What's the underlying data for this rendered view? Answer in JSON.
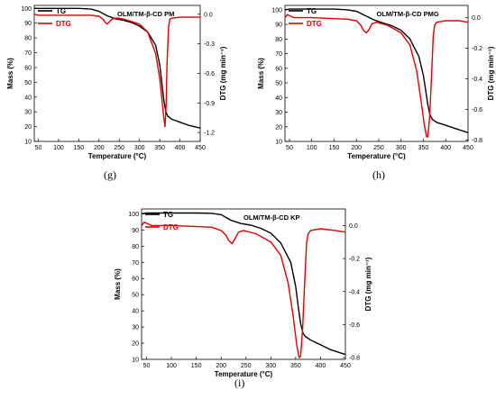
{
  "chart_data": [
    {
      "type": "line",
      "panel": "(g)",
      "title": "OLM/TM-β-CD PM",
      "xlabel": "Temperature (°C)",
      "ylabel": "Mass (%)",
      "y2label": "DTG (mg min⁻¹)",
      "xlim": [
        40,
        450
      ],
      "ylim": [
        10,
        102
      ],
      "y2lim": [
        -1.29,
        0.09
      ],
      "xticks": [
        50,
        100,
        150,
        200,
        250,
        300,
        350,
        400,
        450
      ],
      "yticks": [
        10,
        20,
        30,
        40,
        50,
        60,
        70,
        80,
        90,
        100
      ],
      "y2ticks": [
        0.0,
        -0.3,
        -0.6,
        -0.9,
        -1.2
      ],
      "legend_position": "top-left",
      "series": [
        {
          "name": "TG",
          "axis": "left",
          "color": "#000000",
          "x": [
            40,
            60,
            100,
            150,
            180,
            200,
            220,
            240,
            260,
            280,
            300,
            320,
            340,
            350,
            355,
            360,
            365,
            370,
            375,
            380,
            400,
            420,
            450
          ],
          "values": [
            100,
            100,
            100,
            100,
            99.5,
            98,
            95,
            93,
            92,
            90.5,
            88,
            84,
            75,
            62,
            50,
            38,
            30,
            27,
            26,
            25,
            23,
            21,
            19
          ]
        },
        {
          "name": "DTG",
          "axis": "right",
          "color": "#e00000",
          "x": [
            40,
            50,
            100,
            180,
            200,
            210,
            215,
            220,
            225,
            232,
            240,
            250,
            270,
            300,
            320,
            340,
            350,
            355,
            360,
            363,
            366,
            368,
            372,
            375,
            380,
            400,
            430,
            450
          ],
          "values": [
            0.0,
            -0.01,
            -0.01,
            -0.01,
            -0.02,
            -0.05,
            -0.08,
            -0.1,
            -0.08,
            -0.05,
            -0.04,
            -0.04,
            -0.06,
            -0.1,
            -0.18,
            -0.4,
            -0.65,
            -0.85,
            -1.05,
            -1.14,
            -0.9,
            -0.5,
            -0.12,
            -0.05,
            -0.04,
            -0.03,
            -0.03,
            -0.03
          ]
        }
      ]
    },
    {
      "type": "line",
      "panel": "(h)",
      "title": "OLM/TM-β-CD PMG",
      "xlabel": "Temperature (°C)",
      "ylabel": "Mass (%)",
      "y2label": "DTG (mg min⁻¹)",
      "xlim": [
        40,
        450
      ],
      "ylim": [
        10,
        103
      ],
      "y2lim": [
        -0.81,
        0.08
      ],
      "xticks": [
        50,
        100,
        150,
        200,
        250,
        300,
        350,
        400,
        450
      ],
      "yticks": [
        10,
        20,
        30,
        40,
        50,
        60,
        70,
        80,
        90,
        100
      ],
      "y2ticks": [
        0.0,
        -0.2,
        -0.4,
        -0.6,
        -0.8
      ],
      "legend_position": "top-left",
      "series": [
        {
          "name": "TG",
          "axis": "left",
          "color": "#000000",
          "x": [
            40,
            50,
            100,
            150,
            180,
            200,
            220,
            240,
            260,
            280,
            300,
            320,
            340,
            350,
            355,
            360,
            365,
            370,
            375,
            380,
            400,
            420,
            450
          ],
          "values": [
            100,
            100.5,
            100.5,
            100.5,
            100,
            99,
            96,
            93,
            91,
            89,
            86,
            80,
            68,
            55,
            45,
            35,
            28,
            25,
            24,
            23,
            21,
            19,
            16
          ]
        },
        {
          "name": "DTG",
          "axis": "right",
          "color": "#e00000",
          "x": [
            40,
            45,
            60,
            100,
            180,
            200,
            210,
            215,
            222,
            228,
            235,
            245,
            270,
            300,
            320,
            335,
            345,
            352,
            357,
            360,
            364,
            368,
            372,
            375,
            380,
            400,
            430,
            450
          ],
          "values": [
            0.0,
            0.02,
            0.0,
            0.0,
            -0.01,
            -0.02,
            -0.05,
            -0.08,
            -0.1,
            -0.08,
            -0.04,
            -0.03,
            -0.05,
            -0.1,
            -0.18,
            -0.35,
            -0.55,
            -0.7,
            -0.78,
            -0.78,
            -0.65,
            -0.4,
            -0.12,
            -0.05,
            -0.03,
            -0.02,
            -0.02,
            -0.03
          ]
        }
      ]
    },
    {
      "type": "line",
      "panel": "(i)",
      "title": "OLM/TM-β-CD KP",
      "xlabel": "Temperature (°C)",
      "ylabel": "Mass (%)",
      "y2label": "DTG (mg min⁻¹)",
      "xlim": [
        40,
        450
      ],
      "ylim": [
        10,
        103
      ],
      "y2lim": [
        -0.81,
        0.1
      ],
      "xticks": [
        50,
        100,
        150,
        200,
        250,
        300,
        350,
        400,
        450
      ],
      "yticks": [
        10,
        20,
        30,
        40,
        50,
        60,
        70,
        80,
        90,
        100
      ],
      "y2ticks": [
        0.0,
        -0.2,
        -0.4,
        -0.6,
        -0.8
      ],
      "legend_position": "top-left",
      "series": [
        {
          "name": "TG",
          "axis": "left",
          "color": "#000000",
          "x": [
            40,
            50,
            100,
            150,
            180,
            200,
            220,
            240,
            260,
            280,
            300,
            320,
            340,
            350,
            355,
            360,
            365,
            370,
            375,
            380,
            400,
            420,
            450
          ],
          "values": [
            100,
            100.5,
            100.5,
            100.5,
            100.3,
            99.5,
            96,
            94,
            93,
            91,
            88,
            82,
            70,
            55,
            43,
            32,
            26,
            24,
            23,
            22,
            19,
            16,
            13
          ]
        },
        {
          "name": "DTG",
          "axis": "right",
          "color": "#e00000",
          "x": [
            40,
            45,
            60,
            100,
            180,
            200,
            210,
            215,
            222,
            228,
            235,
            245,
            270,
            300,
            320,
            335,
            345,
            352,
            357,
            360,
            364,
            368,
            372,
            375,
            380,
            400,
            430,
            450
          ],
          "values": [
            0.0,
            0.02,
            0.0,
            0.0,
            -0.01,
            -0.03,
            -0.06,
            -0.09,
            -0.11,
            -0.08,
            -0.04,
            -0.03,
            -0.05,
            -0.1,
            -0.18,
            -0.35,
            -0.55,
            -0.72,
            -0.8,
            -0.79,
            -0.62,
            -0.35,
            -0.1,
            -0.05,
            -0.03,
            -0.02,
            -0.03,
            -0.04
          ]
        }
      ]
    }
  ]
}
